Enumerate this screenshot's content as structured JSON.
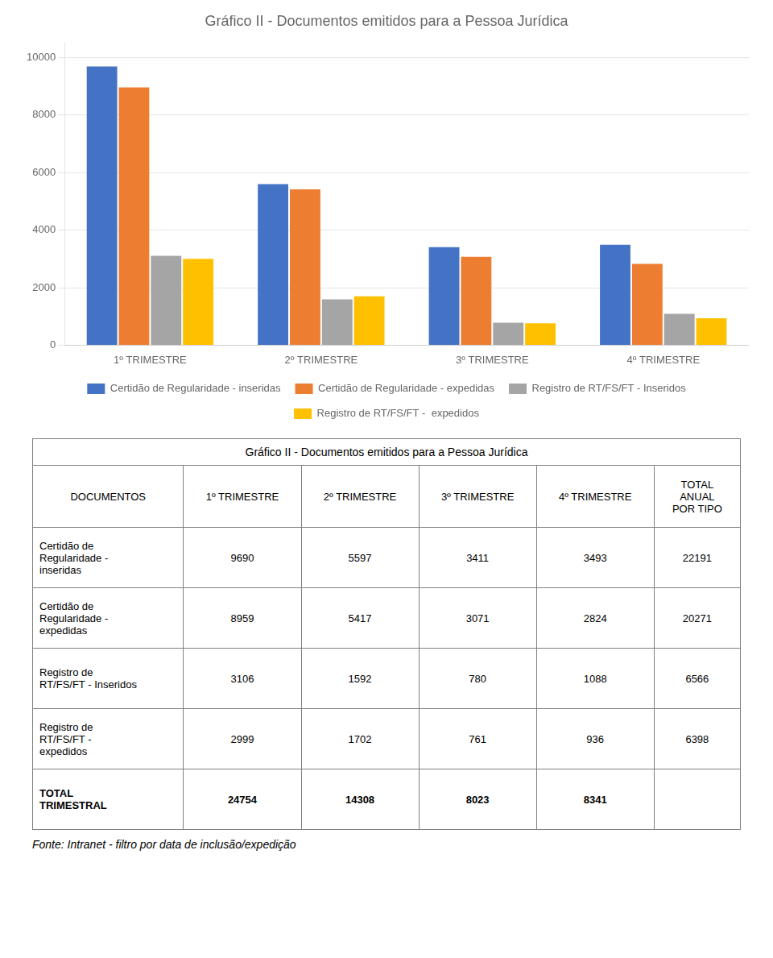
{
  "chart_data": {
    "type": "bar",
    "title": "Gráfico II - Documentos emitidos para a Pessoa Jurídica",
    "categories": [
      "1º TRIMESTRE",
      "2º TRIMESTRE",
      "3º TRIMESTRE",
      "4º TRIMESTRE"
    ],
    "series": [
      {
        "name": "Certidão de Regularidade - inseridas",
        "color": "#4472C4",
        "values": [
          9690,
          5597,
          3411,
          3493
        ]
      },
      {
        "name": "Certidão de Regularidade - expedidas",
        "color": "#ED7D31",
        "values": [
          8959,
          5417,
          3071,
          2824
        ]
      },
      {
        "name": "Registro de RT/FS/FT - Inseridos",
        "color": "#A5A5A5",
        "values": [
          3106,
          1592,
          780,
          1088
        ]
      },
      {
        "name": "Registro de RT/FS/FT -  expedidos",
        "color": "#FFC000",
        "values": [
          2999,
          1702,
          761,
          936
        ]
      }
    ],
    "ylim": [
      0,
      10500
    ],
    "yticks": [
      0,
      2000,
      4000,
      6000,
      8000,
      10000
    ],
    "grid": true,
    "legend": "bottom",
    "table": {
      "title": "Gráfico II - Documentos emitidos para a Pessoa Jurídica",
      "columns": [
        "DOCUMENTOS",
        "1º TRIMESTRE",
        "2º TRIMESTRE",
        "3º TRIMESTRE",
        "4º TRIMESTRE",
        "TOTAL\nANUAL\nPOR TIPO"
      ],
      "rows": [
        [
          "Certidão de\nRegularidade -\ninseridas",
          "9690",
          "5597",
          "3411",
          "3493",
          "22191"
        ],
        [
          "Certidão de\nRegularidade -\nexpedidas",
          "8959",
          "5417",
          "3071",
          "2824",
          "20271"
        ],
        [
          "Registro de\nRT/FS/FT - Inseridos",
          "3106",
          "1592",
          "780",
          "1088",
          "6566"
        ],
        [
          "Registro de\nRT/FS/FT -\nexpedidos",
          "2999",
          "1702",
          "761",
          "936",
          "6398"
        ],
        [
          "TOTAL\nTRIMESTRAL",
          "24754",
          "14308",
          "8023",
          "8341",
          null
        ]
      ]
    },
    "footer": "Fonte: Intranet - filtro por data de inclusão/expedição"
  }
}
